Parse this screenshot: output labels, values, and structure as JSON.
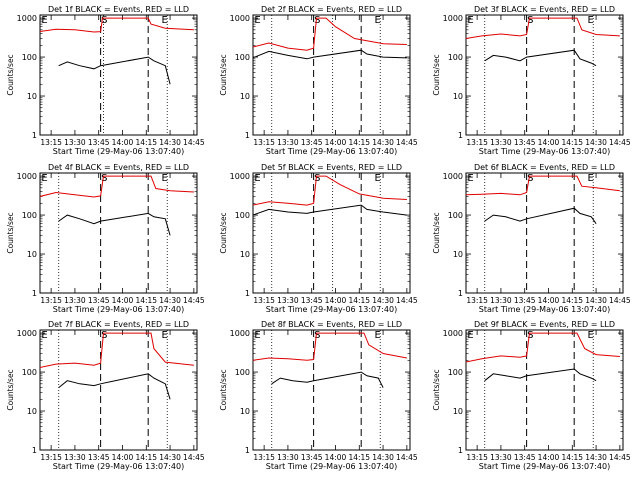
{
  "colors": {
    "events": "#000000",
    "lld": "#e00000",
    "axis": "#000000"
  },
  "common": {
    "ylabel": "Counts/sec",
    "xlabel": "Start Time (29-May-06 13:07:40)",
    "y_ticks": [
      "1",
      "10",
      "100",
      "1000"
    ],
    "x_ticks": [
      "13:15",
      "13:30",
      "13:45",
      "14:00",
      "14:15",
      "14:30",
      "14:45"
    ],
    "markers": [
      "E",
      "S",
      "E"
    ]
  },
  "chart_data": [
    {
      "type": "line",
      "title": "Det 1f BLACK = Events, RED = LLD",
      "ylog": true,
      "ylim": [
        1,
        1200
      ],
      "dotted_lines": [
        13.8,
        14.47
      ],
      "dashed_lines": [
        13.77,
        14.27
      ],
      "series": [
        {
          "name": "Events",
          "color": "#000000",
          "points": [
            [
              13.33,
              60
            ],
            [
              13.42,
              75
            ],
            [
              13.55,
              60
            ],
            [
              13.7,
              50
            ],
            [
              13.77,
              60
            ],
            [
              14.27,
              100
            ],
            [
              14.33,
              80
            ],
            [
              14.45,
              60
            ],
            [
              14.5,
              20
            ]
          ]
        },
        {
          "name": "LLD",
          "color": "#e00000",
          "points": [
            [
              13.13,
              450
            ],
            [
              13.3,
              520
            ],
            [
              13.5,
              500
            ],
            [
              13.7,
              440
            ],
            [
              13.77,
              450
            ],
            [
              13.79,
              1000
            ],
            [
              14.27,
              1000
            ],
            [
              14.3,
              700
            ],
            [
              14.45,
              550
            ],
            [
              14.75,
              500
            ]
          ]
        }
      ]
    },
    {
      "type": "line",
      "title": "Det 2f BLACK = Events, RED = LLD",
      "ylog": true,
      "ylim": [
        1,
        1200
      ],
      "dotted_lines": [
        13.33,
        13.97,
        14.47
      ],
      "dashed_lines": [
        13.77,
        14.27
      ],
      "series": [
        {
          "name": "Events",
          "color": "#000000",
          "points": [
            [
              13.13,
              95
            ],
            [
              13.3,
              140
            ],
            [
              13.5,
              110
            ],
            [
              13.7,
              90
            ],
            [
              13.77,
              100
            ],
            [
              14.27,
              150
            ],
            [
              14.33,
              120
            ],
            [
              14.5,
              100
            ],
            [
              14.75,
              95
            ]
          ]
        },
        {
          "name": "LLD",
          "color": "#e00000",
          "points": [
            [
              13.13,
              180
            ],
            [
              13.3,
              230
            ],
            [
              13.5,
              170
            ],
            [
              13.7,
              150
            ],
            [
              13.77,
              170
            ],
            [
              13.8,
              1000
            ],
            [
              13.9,
              1000
            ],
            [
              14.0,
              600
            ],
            [
              14.2,
              300
            ],
            [
              14.5,
              220
            ],
            [
              14.75,
              210
            ]
          ]
        }
      ]
    },
    {
      "type": "line",
      "title": "Det 3f BLACK = Events, RED = LLD",
      "ylog": true,
      "ylim": [
        1,
        1200
      ],
      "dotted_lines": [
        13.33,
        14.47
      ],
      "dashed_lines": [
        13.77,
        14.27
      ],
      "series": [
        {
          "name": "Events",
          "color": "#000000",
          "points": [
            [
              13.33,
              80
            ],
            [
              13.42,
              110
            ],
            [
              13.55,
              100
            ],
            [
              13.7,
              80
            ],
            [
              13.77,
              100
            ],
            [
              14.27,
              150
            ],
            [
              14.33,
              90
            ],
            [
              14.45,
              70
            ],
            [
              14.5,
              60
            ]
          ]
        },
        {
          "name": "LLD",
          "color": "#e00000",
          "points": [
            [
              13.13,
              300
            ],
            [
              13.3,
              350
            ],
            [
              13.5,
              390
            ],
            [
              13.7,
              350
            ],
            [
              13.77,
              380
            ],
            [
              13.8,
              1000
            ],
            [
              14.3,
              1000
            ],
            [
              14.35,
              500
            ],
            [
              14.5,
              380
            ],
            [
              14.75,
              350
            ]
          ]
        }
      ]
    },
    {
      "type": "line",
      "title": "Det 4f BLACK = Events, RED = LLD",
      "ylog": true,
      "ylim": [
        1,
        1200
      ],
      "dotted_lines": [
        13.33,
        14.47
      ],
      "dashed_lines": [
        13.77,
        14.27
      ],
      "series": [
        {
          "name": "Events",
          "color": "#000000",
          "points": [
            [
              13.33,
              70
            ],
            [
              13.42,
              100
            ],
            [
              13.55,
              80
            ],
            [
              13.7,
              60
            ],
            [
              13.77,
              70
            ],
            [
              14.27,
              110
            ],
            [
              14.33,
              90
            ],
            [
              14.45,
              80
            ],
            [
              14.5,
              30
            ]
          ]
        },
        {
          "name": "LLD",
          "color": "#e00000",
          "points": [
            [
              13.13,
              300
            ],
            [
              13.3,
              380
            ],
            [
              13.5,
              330
            ],
            [
              13.7,
              290
            ],
            [
              13.77,
              310
            ],
            [
              13.8,
              1000
            ],
            [
              14.3,
              1000
            ],
            [
              14.35,
              480
            ],
            [
              14.5,
              420
            ],
            [
              14.75,
              390
            ]
          ]
        }
      ]
    },
    {
      "type": "line",
      "title": "Det 5f BLACK = Events, RED = LLD",
      "ylog": true,
      "ylim": [
        1,
        1200
      ],
      "dotted_lines": [
        13.33,
        13.97,
        14.47
      ],
      "dashed_lines": [
        13.77,
        14.27
      ],
      "series": [
        {
          "name": "Events",
          "color": "#000000",
          "points": [
            [
              13.13,
              100
            ],
            [
              13.3,
              140
            ],
            [
              13.5,
              120
            ],
            [
              13.7,
              110
            ],
            [
              13.77,
              120
            ],
            [
              14.27,
              180
            ],
            [
              14.33,
              140
            ],
            [
              14.5,
              120
            ],
            [
              14.75,
              100
            ]
          ]
        },
        {
          "name": "LLD",
          "color": "#e00000",
          "points": [
            [
              13.13,
              180
            ],
            [
              13.3,
              220
            ],
            [
              13.5,
              200
            ],
            [
              13.7,
              180
            ],
            [
              13.77,
              200
            ],
            [
              13.8,
              1000
            ],
            [
              13.9,
              1000
            ],
            [
              14.05,
              600
            ],
            [
              14.25,
              350
            ],
            [
              14.5,
              270
            ],
            [
              14.75,
              250
            ]
          ]
        }
      ]
    },
    {
      "type": "line",
      "title": "Det 6f BLACK = Events, RED = LLD",
      "ylog": true,
      "ylim": [
        1,
        1200
      ],
      "dotted_lines": [
        13.33,
        14.47
      ],
      "dashed_lines": [
        13.77,
        14.27
      ],
      "series": [
        {
          "name": "Events",
          "color": "#000000",
          "points": [
            [
              13.33,
              70
            ],
            [
              13.42,
              100
            ],
            [
              13.55,
              90
            ],
            [
              13.7,
              70
            ],
            [
              13.77,
              80
            ],
            [
              14.27,
              150
            ],
            [
              14.33,
              110
            ],
            [
              14.45,
              90
            ],
            [
              14.5,
              60
            ]
          ]
        },
        {
          "name": "LLD",
          "color": "#e00000",
          "points": [
            [
              13.13,
              330
            ],
            [
              13.3,
              340
            ],
            [
              13.5,
              360
            ],
            [
              13.7,
              330
            ],
            [
              13.77,
              380
            ],
            [
              13.8,
              1000
            ],
            [
              14.3,
              1000
            ],
            [
              14.35,
              550
            ],
            [
              14.5,
              500
            ],
            [
              14.75,
              420
            ]
          ]
        }
      ]
    },
    {
      "type": "line",
      "title": "Det 7f BLACK = Events, RED = LLD",
      "ylog": true,
      "ylim": [
        1,
        1200
      ],
      "dotted_lines": [
        13.33,
        14.47
      ],
      "dashed_lines": [
        13.77,
        14.27
      ],
      "series": [
        {
          "name": "Events",
          "color": "#000000",
          "points": [
            [
              13.33,
              40
            ],
            [
              13.42,
              60
            ],
            [
              13.55,
              50
            ],
            [
              13.7,
              45
            ],
            [
              13.77,
              50
            ],
            [
              14.27,
              90
            ],
            [
              14.33,
              70
            ],
            [
              14.45,
              50
            ],
            [
              14.5,
              20
            ]
          ]
        },
        {
          "name": "LLD",
          "color": "#e00000",
          "points": [
            [
              13.13,
              130
            ],
            [
              13.3,
              160
            ],
            [
              13.5,
              170
            ],
            [
              13.7,
              150
            ],
            [
              13.77,
              170
            ],
            [
              13.8,
              1000
            ],
            [
              14.3,
              1000
            ],
            [
              14.33,
              400
            ],
            [
              14.45,
              180
            ],
            [
              14.75,
              150
            ]
          ]
        }
      ]
    },
    {
      "type": "line",
      "title": "Det 8f BLACK = Events, RED = LLD",
      "ylog": true,
      "ylim": [
        1,
        1200
      ],
      "dotted_lines": [
        13.33,
        14.47
      ],
      "dashed_lines": [
        13.77,
        14.27
      ],
      "series": [
        {
          "name": "Events",
          "color": "#000000",
          "points": [
            [
              13.33,
              50
            ],
            [
              13.42,
              70
            ],
            [
              13.55,
              60
            ],
            [
              13.7,
              55
            ],
            [
              13.77,
              60
            ],
            [
              14.27,
              100
            ],
            [
              14.33,
              80
            ],
            [
              14.45,
              70
            ],
            [
              14.5,
              40
            ]
          ]
        },
        {
          "name": "LLD",
          "color": "#e00000",
          "points": [
            [
              13.13,
              200
            ],
            [
              13.3,
              230
            ],
            [
              13.5,
              220
            ],
            [
              13.7,
              200
            ],
            [
              13.77,
              210
            ],
            [
              13.8,
              1000
            ],
            [
              14.3,
              1000
            ],
            [
              14.35,
              500
            ],
            [
              14.5,
              300
            ],
            [
              14.75,
              230
            ]
          ]
        }
      ]
    },
    {
      "type": "line",
      "title": "Det 9f BLACK = Events, RED = LLD",
      "ylog": true,
      "ylim": [
        1,
        1200
      ],
      "dotted_lines": [
        13.33,
        14.47
      ],
      "dashed_lines": [
        13.77,
        14.27
      ],
      "series": [
        {
          "name": "Events",
          "color": "#000000",
          "points": [
            [
              13.33,
              60
            ],
            [
              13.42,
              90
            ],
            [
              13.55,
              80
            ],
            [
              13.7,
              70
            ],
            [
              13.77,
              80
            ],
            [
              14.27,
              120
            ],
            [
              14.33,
              90
            ],
            [
              14.45,
              70
            ],
            [
              14.5,
              60
            ]
          ]
        },
        {
          "name": "LLD",
          "color": "#e00000",
          "points": [
            [
              13.13,
              180
            ],
            [
              13.3,
              220
            ],
            [
              13.5,
              260
            ],
            [
              13.7,
              240
            ],
            [
              13.77,
              260
            ],
            [
              13.8,
              1000
            ],
            [
              14.3,
              1000
            ],
            [
              14.38,
              400
            ],
            [
              14.5,
              280
            ],
            [
              14.75,
              250
            ]
          ]
        }
      ]
    }
  ]
}
